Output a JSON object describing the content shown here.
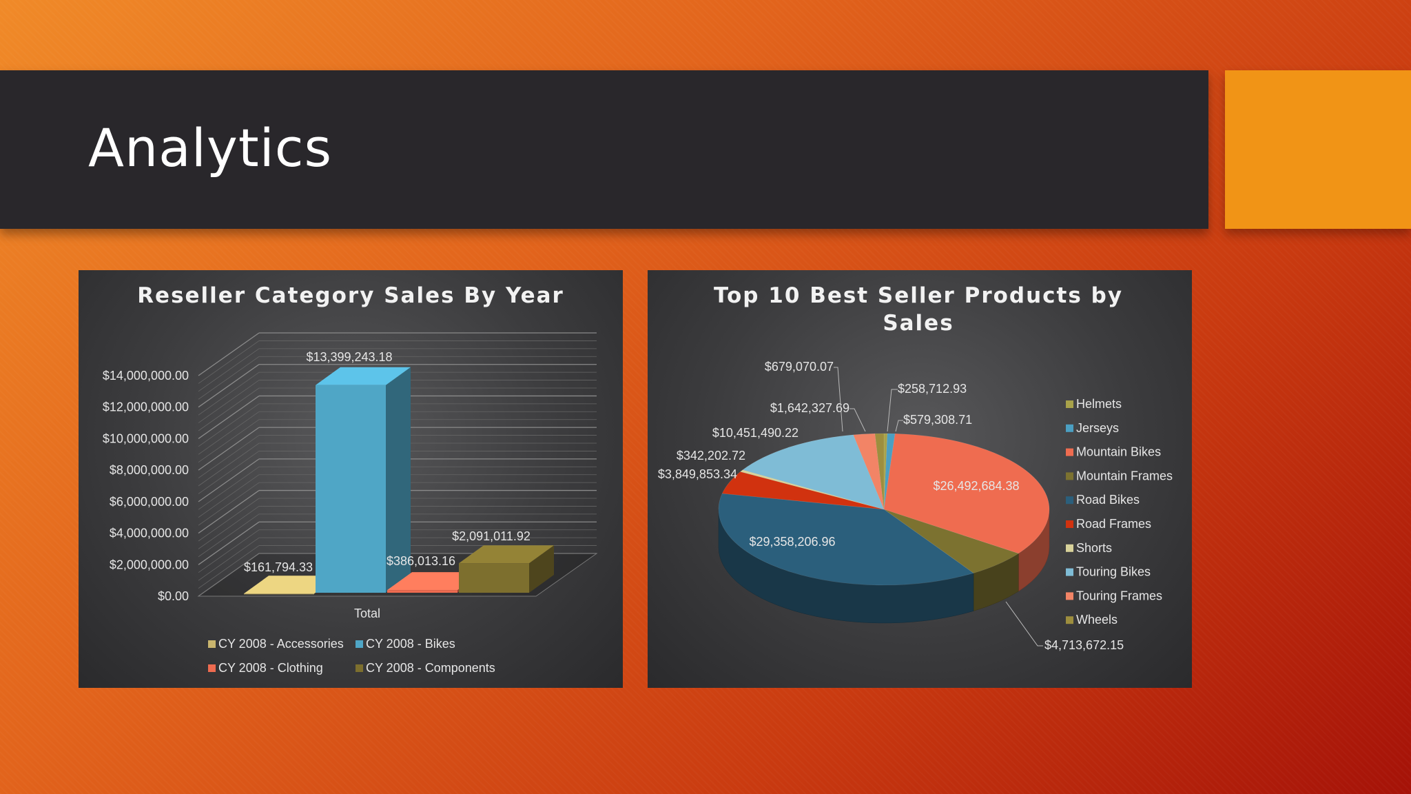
{
  "slide": {
    "title": "Analytics"
  },
  "colors": {
    "accent": "#f19416",
    "title_bar": "#29272b"
  },
  "chart_data": [
    {
      "type": "bar",
      "title": "Reseller Category Sales By Year",
      "categories": [
        "Total"
      ],
      "xlabel": "",
      "ylabel": "",
      "ylim": [
        0,
        14000000
      ],
      "yticks": [
        "$0.00",
        "$2,000,000.00",
        "$4,000,000.00",
        "$6,000,000.00",
        "$8,000,000.00",
        "$10,000,000.00",
        "$12,000,000.00",
        "$14,000,000.00"
      ],
      "series": [
        {
          "name": "CY 2008 - Accessories",
          "values": [
            161794.33
          ],
          "label": "$161,794.33",
          "color": "#c9b56e"
        },
        {
          "name": "CY 2008 - Bikes",
          "values": [
            13399243.18
          ],
          "label": "$13,399,243.18",
          "color": "#4fa6c6"
        },
        {
          "name": "CY 2008 - Clothing",
          "values": [
            386013.16
          ],
          "label": "$386,013.16",
          "color": "#ee6b50"
        },
        {
          "name": "CY 2008 - Components",
          "values": [
            2091011.92
          ],
          "label": "$2,091,011.92",
          "color": "#7d6f2e"
        }
      ],
      "legend": "bottom"
    },
    {
      "type": "pie",
      "title_lines": [
        "Top 10 Best Seller Products by",
        "Sales"
      ],
      "slices": [
        {
          "name": "Helmets",
          "value": 258712.93,
          "label": "$258,712.93",
          "color": "#a8a24a"
        },
        {
          "name": "Jerseys",
          "value": 579308.71,
          "label": "$579,308.71",
          "color": "#4b9fc2"
        },
        {
          "name": "Mountain Bikes",
          "value": 26492684.38,
          "label": "$26,492,684.38",
          "color": "#ef6c50"
        },
        {
          "name": "Mountain Frames",
          "value": 4713672.15,
          "label": "$4,713,672.15",
          "color": "#7c7230"
        },
        {
          "name": "Road Bikes",
          "value": 29358206.96,
          "label": "$29,358,206.96",
          "color": "#2b5f7c"
        },
        {
          "name": "Road Frames",
          "value": 3849853.34,
          "label": "$3,849,853.34",
          "color": "#d1320f"
        },
        {
          "name": "Shorts",
          "value": 342202.72,
          "label": "$342,202.72",
          "color": "#d8d29a"
        },
        {
          "name": "Touring Bikes",
          "value": 10451490.22,
          "label": "$10,451,490.22",
          "color": "#7fbcd6"
        },
        {
          "name": "Touring Frames",
          "value": 1642327.69,
          "label": "$1,642,327.69",
          "color": "#f28466"
        },
        {
          "name": "Wheels",
          "value": 679070.07,
          "label": "$679,070.07",
          "color": "#9d8e3e"
        }
      ],
      "legend": "right"
    }
  ]
}
